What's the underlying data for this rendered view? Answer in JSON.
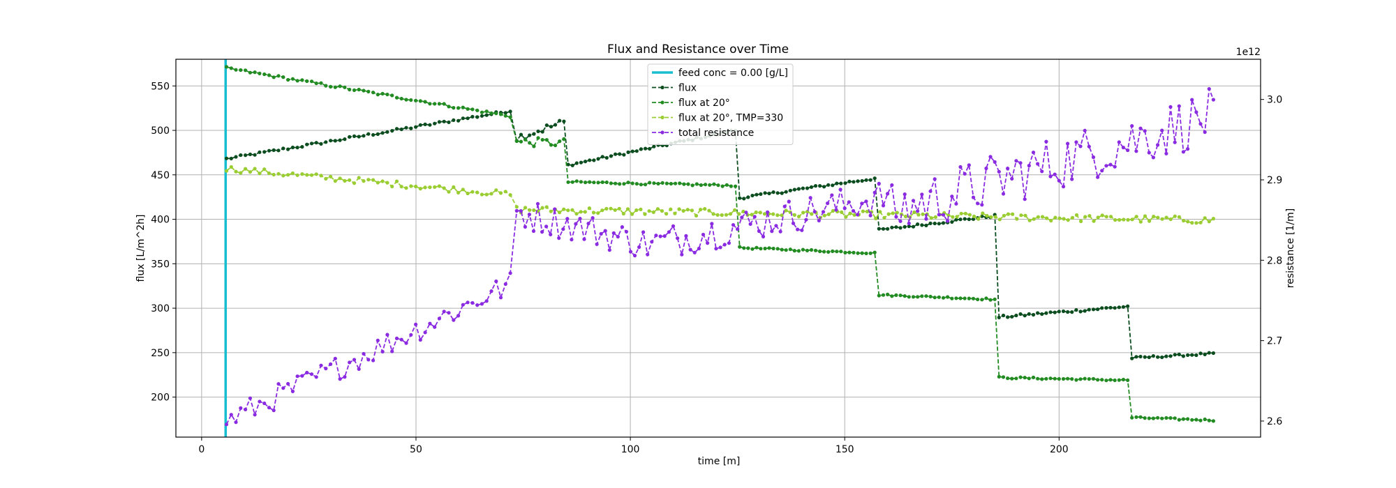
{
  "chart_data": {
    "type": "line",
    "title": "Flux and Resistance over Time",
    "xlabel": "time [m]",
    "ylabel": "flux [L/m^2h]",
    "y2label": "resistance [1/m]",
    "y2_offset_text": "1e12",
    "xlim": [
      -6,
      247
    ],
    "ylim": [
      155,
      580
    ],
    "y2lim": [
      2.58,
      3.05
    ],
    "x_ticks": [
      0,
      50,
      100,
      150,
      200
    ],
    "y_ticks": [
      200,
      250,
      300,
      350,
      400,
      450,
      500,
      550
    ],
    "y2_ticks": [
      2.6,
      2.7,
      2.8,
      2.9,
      3.0
    ],
    "grid": true,
    "legend_position": "upper center",
    "vline": {
      "name": "feed conc = 0.00 [g/L]",
      "x": 5.6,
      "color": "#17becf"
    },
    "series": [
      {
        "name": "flux",
        "color": "#0b4d1f",
        "axis": "left",
        "segments": [
          {
            "x_start": 5.8,
            "x_end": 72,
            "step": 1.1,
            "y_start": 468,
            "y_end": 522,
            "noise": 1.5
          },
          {
            "x_start": 73.5,
            "x_end": 84.5,
            "step": 1.0,
            "y_start": 492,
            "y_end": 509,
            "noise": 5
          },
          {
            "x_start": 85.5,
            "x_end": 124.5,
            "step": 1.0,
            "y_start": 461,
            "y_end": 500,
            "noise": 1.5
          },
          {
            "x_start": 125.5,
            "x_end": 157,
            "step": 1.0,
            "y_start": 424,
            "y_end": 446,
            "noise": 1.5
          },
          {
            "x_start": 158,
            "x_end": 185,
            "step": 1.0,
            "y_start": 388,
            "y_end": 404,
            "noise": 1.5
          },
          {
            "x_start": 186,
            "x_end": 216,
            "step": 1.0,
            "y_start": 290,
            "y_end": 302,
            "noise": 1.5
          },
          {
            "x_start": 217,
            "x_end": 236,
            "step": 1.0,
            "y_start": 244,
            "y_end": 249,
            "noise": 1.2
          }
        ]
      },
      {
        "name": "flux at 20°",
        "color": "#228b22",
        "axis": "left",
        "segments": [
          {
            "x_start": 5.8,
            "x_end": 72,
            "step": 1.1,
            "y_start": 570,
            "y_end": 516,
            "noise": 1.5
          },
          {
            "x_start": 73.5,
            "x_end": 84.5,
            "step": 1.0,
            "y_start": 487,
            "y_end": 486,
            "noise": 5
          },
          {
            "x_start": 85.5,
            "x_end": 124.5,
            "step": 1.0,
            "y_start": 442,
            "y_end": 438,
            "noise": 1.2
          },
          {
            "x_start": 125.5,
            "x_end": 157,
            "step": 1.0,
            "y_start": 368,
            "y_end": 362,
            "noise": 1.0
          },
          {
            "x_start": 158,
            "x_end": 185,
            "step": 1.0,
            "y_start": 315,
            "y_end": 310,
            "noise": 1.0
          },
          {
            "x_start": 186,
            "x_end": 216,
            "step": 1.0,
            "y_start": 222,
            "y_end": 219,
            "noise": 1.0
          },
          {
            "x_start": 217,
            "x_end": 236,
            "step": 1.0,
            "y_start": 177,
            "y_end": 174,
            "noise": 1.0
          }
        ]
      },
      {
        "name": "flux at 20°, TMP=330",
        "color": "#9acd32",
        "axis": "left",
        "segments": [
          {
            "x_start": 5.8,
            "x_end": 72,
            "step": 1.1,
            "y_start": 457,
            "y_end": 428,
            "noise": 3.5
          },
          {
            "x_start": 73.5,
            "x_end": 236,
            "step": 1.0,
            "y_start": 411,
            "y_end": 399,
            "noise": 4
          }
        ]
      },
      {
        "name": "total resistance",
        "color": "#8a2be2",
        "axis": "right",
        "segments": [
          {
            "x_start": 5.8,
            "x_end": 72,
            "step": 1.1,
            "y_start": 2.6,
            "y_end": 2.77,
            "noise": 0.016
          },
          {
            "x_start": 73.5,
            "x_end": 104,
            "step": 1.0,
            "y_start": 2.86,
            "y_end": 2.82,
            "noise": 0.02
          },
          {
            "x_start": 105,
            "x_end": 160,
            "step": 1.0,
            "y_start": 2.82,
            "y_end": 2.88,
            "noise": 0.022
          },
          {
            "x_start": 161,
            "x_end": 236,
            "step": 1.0,
            "y_start": 2.86,
            "y_end": 2.98,
            "noise": 0.035
          }
        ]
      }
    ]
  }
}
